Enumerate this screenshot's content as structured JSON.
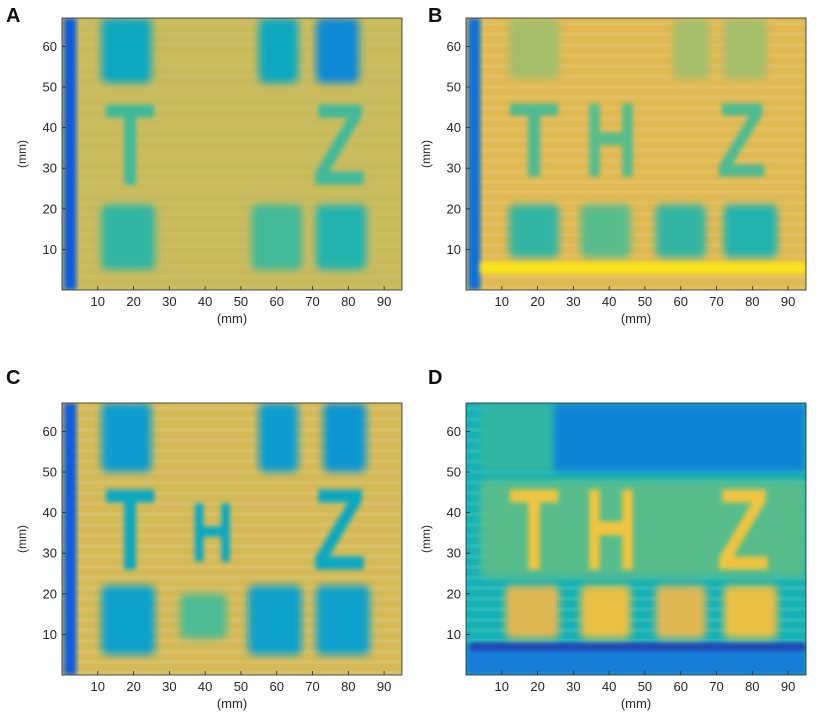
{
  "chart_data": [
    {
      "type": "heatmap",
      "panel_label": "A",
      "xlabel": "(mm)",
      "ylabel": "(mm)",
      "xticks": [
        10,
        20,
        30,
        40,
        50,
        60,
        70,
        80,
        90
      ],
      "yticks": [
        10,
        20,
        30,
        40,
        50,
        60
      ],
      "xlim": [
        0,
        95
      ],
      "ylim": [
        0,
        67
      ],
      "colormap": "parula",
      "background_level": 0.78,
      "features": [
        {
          "kind": "edge_band",
          "x": [
            0.5,
            4
          ],
          "y": [
            0,
            67
          ],
          "level": 0.12
        },
        {
          "kind": "block",
          "x": [
            11,
            25
          ],
          "y": [
            51,
            67
          ],
          "level": 0.45
        },
        {
          "kind": "block",
          "x": [
            55,
            66
          ],
          "y": [
            51,
            67
          ],
          "level": 0.45
        },
        {
          "kind": "block",
          "x": [
            71,
            83
          ],
          "y": [
            51,
            67
          ],
          "level": 0.3
        },
        {
          "kind": "block",
          "x": [
            11,
            26
          ],
          "y": [
            5,
            21
          ],
          "level": 0.55
        },
        {
          "kind": "block",
          "x": [
            53,
            67
          ],
          "y": [
            5,
            21
          ],
          "level": 0.58
        },
        {
          "kind": "block",
          "x": [
            71,
            85
          ],
          "y": [
            5,
            21
          ],
          "level": 0.52
        },
        {
          "kind": "letter",
          "text": "T",
          "x": [
            12,
            26
          ],
          "y": [
            26,
            48
          ],
          "level": 0.58
        },
        {
          "kind": "letter",
          "text": "Z",
          "x": [
            70,
            85
          ],
          "y": [
            26,
            48
          ],
          "level": 0.58
        }
      ]
    },
    {
      "type": "heatmap",
      "panel_label": "B",
      "xlabel": "(mm)",
      "ylabel": "(mm)",
      "xticks": [
        10,
        20,
        30,
        40,
        50,
        60,
        70,
        80,
        90
      ],
      "yticks": [
        10,
        20,
        30,
        40,
        50,
        60
      ],
      "xlim": [
        0,
        95
      ],
      "ylim": [
        0,
        67
      ],
      "colormap": "parula",
      "background_level": 0.82,
      "features": [
        {
          "kind": "edge_band",
          "x": [
            0.5,
            4
          ],
          "y": [
            0,
            67
          ],
          "level": 0.2
        },
        {
          "kind": "bright_line",
          "x": [
            4,
            95
          ],
          "y": [
            4,
            7
          ],
          "level": 0.95
        },
        {
          "kind": "block",
          "x": [
            12,
            26
          ],
          "y": [
            52,
            67
          ],
          "level": 0.72
        },
        {
          "kind": "block",
          "x": [
            58,
            68
          ],
          "y": [
            52,
            67
          ],
          "level": 0.72
        },
        {
          "kind": "block",
          "x": [
            72,
            84
          ],
          "y": [
            52,
            67
          ],
          "level": 0.72
        },
        {
          "kind": "block",
          "x": [
            12,
            26
          ],
          "y": [
            8,
            21
          ],
          "level": 0.55
        },
        {
          "kind": "block",
          "x": [
            32,
            46
          ],
          "y": [
            8,
            21
          ],
          "level": 0.62
        },
        {
          "kind": "block",
          "x": [
            53,
            67
          ],
          "y": [
            8,
            21
          ],
          "level": 0.55
        },
        {
          "kind": "block",
          "x": [
            72,
            87
          ],
          "y": [
            8,
            21
          ],
          "level": 0.52
        },
        {
          "kind": "letter",
          "text": "T",
          "x": [
            12,
            26
          ],
          "y": [
            28,
            48
          ],
          "level": 0.6
        },
        {
          "kind": "letter",
          "text": "H",
          "x": [
            33,
            48
          ],
          "y": [
            28,
            48
          ],
          "level": 0.62
        },
        {
          "kind": "letter",
          "text": "Z",
          "x": [
            70,
            84
          ],
          "y": [
            28,
            48
          ],
          "level": 0.6
        }
      ]
    },
    {
      "type": "heatmap",
      "panel_label": "C",
      "xlabel": "(mm)",
      "ylabel": "(mm)",
      "xticks": [
        10,
        20,
        30,
        40,
        50,
        60,
        70,
        80,
        90
      ],
      "yticks": [
        10,
        20,
        30,
        40,
        50,
        60
      ],
      "xlim": [
        0,
        95
      ],
      "ylim": [
        0,
        67
      ],
      "colormap": "parula",
      "background_level": 0.8,
      "features": [
        {
          "kind": "edge_band",
          "x": [
            0.5,
            4
          ],
          "y": [
            0,
            67
          ],
          "level": 0.12
        },
        {
          "kind": "block",
          "x": [
            11,
            25
          ],
          "y": [
            50,
            67
          ],
          "level": 0.38
        },
        {
          "kind": "block",
          "x": [
            55,
            66
          ],
          "y": [
            50,
            67
          ],
          "level": 0.38
        },
        {
          "kind": "block",
          "x": [
            73,
            85
          ],
          "y": [
            50,
            67
          ],
          "level": 0.35
        },
        {
          "kind": "block",
          "x": [
            11,
            26
          ],
          "y": [
            5,
            22
          ],
          "level": 0.4
        },
        {
          "kind": "block",
          "x": [
            33,
            46
          ],
          "y": [
            9,
            20
          ],
          "level": 0.6
        },
        {
          "kind": "block",
          "x": [
            52,
            67
          ],
          "y": [
            5,
            22
          ],
          "level": 0.4
        },
        {
          "kind": "block",
          "x": [
            71,
            86
          ],
          "y": [
            5,
            22
          ],
          "level": 0.4
        },
        {
          "kind": "letter",
          "text": "T",
          "x": [
            12,
            26
          ],
          "y": [
            26,
            48
          ],
          "level": 0.45
        },
        {
          "kind": "letter",
          "text": "H",
          "x": [
            36,
            48
          ],
          "y": [
            28,
            44
          ],
          "level": 0.45
        },
        {
          "kind": "letter",
          "text": "Z",
          "x": [
            70,
            85
          ],
          "y": [
            26,
            48
          ],
          "level": 0.45
        }
      ]
    },
    {
      "type": "heatmap",
      "panel_label": "D",
      "xlabel": "(mm)",
      "ylabel": "(mm)",
      "xticks": [
        10,
        20,
        30,
        40,
        50,
        60,
        70,
        80,
        90
      ],
      "yticks": [
        10,
        20,
        30,
        40,
        50,
        60
      ],
      "xlim": [
        0,
        95
      ],
      "ylim": [
        0,
        67
      ],
      "colormap": "parula",
      "background_level": 0.5,
      "features": [
        {
          "kind": "edge_band",
          "x": [
            0,
            95
          ],
          "y": [
            0,
            7
          ],
          "level": 0.25
        },
        {
          "kind": "bright_line",
          "x": [
            1,
            95
          ],
          "y": [
            6,
            8
          ],
          "level": 0.06
        },
        {
          "kind": "block",
          "x": [
            24,
            95
          ],
          "y": [
            50,
            67
          ],
          "level": 0.28
        },
        {
          "kind": "block",
          "x": [
            4,
            24
          ],
          "y": [
            50,
            67
          ],
          "level": 0.55
        },
        {
          "kind": "block",
          "x": [
            4,
            95
          ],
          "y": [
            24,
            48
          ],
          "level": 0.62
        },
        {
          "kind": "block",
          "x": [
            11,
            26
          ],
          "y": [
            9,
            22
          ],
          "level": 0.82
        },
        {
          "kind": "block",
          "x": [
            32,
            46
          ],
          "y": [
            9,
            22
          ],
          "level": 0.85
        },
        {
          "kind": "block",
          "x": [
            53,
            67
          ],
          "y": [
            9,
            22
          ],
          "level": 0.82
        },
        {
          "kind": "block",
          "x": [
            72,
            87
          ],
          "y": [
            9,
            22
          ],
          "level": 0.85
        },
        {
          "kind": "letter",
          "text": "T",
          "x": [
            12,
            26
          ],
          "y": [
            26,
            48
          ],
          "level": 0.86
        },
        {
          "kind": "letter",
          "text": "H",
          "x": [
            33,
            48
          ],
          "y": [
            26,
            48
          ],
          "level": 0.86
        },
        {
          "kind": "letter",
          "text": "Z",
          "x": [
            70,
            85
          ],
          "y": [
            26,
            48
          ],
          "level": 0.86
        }
      ]
    }
  ]
}
